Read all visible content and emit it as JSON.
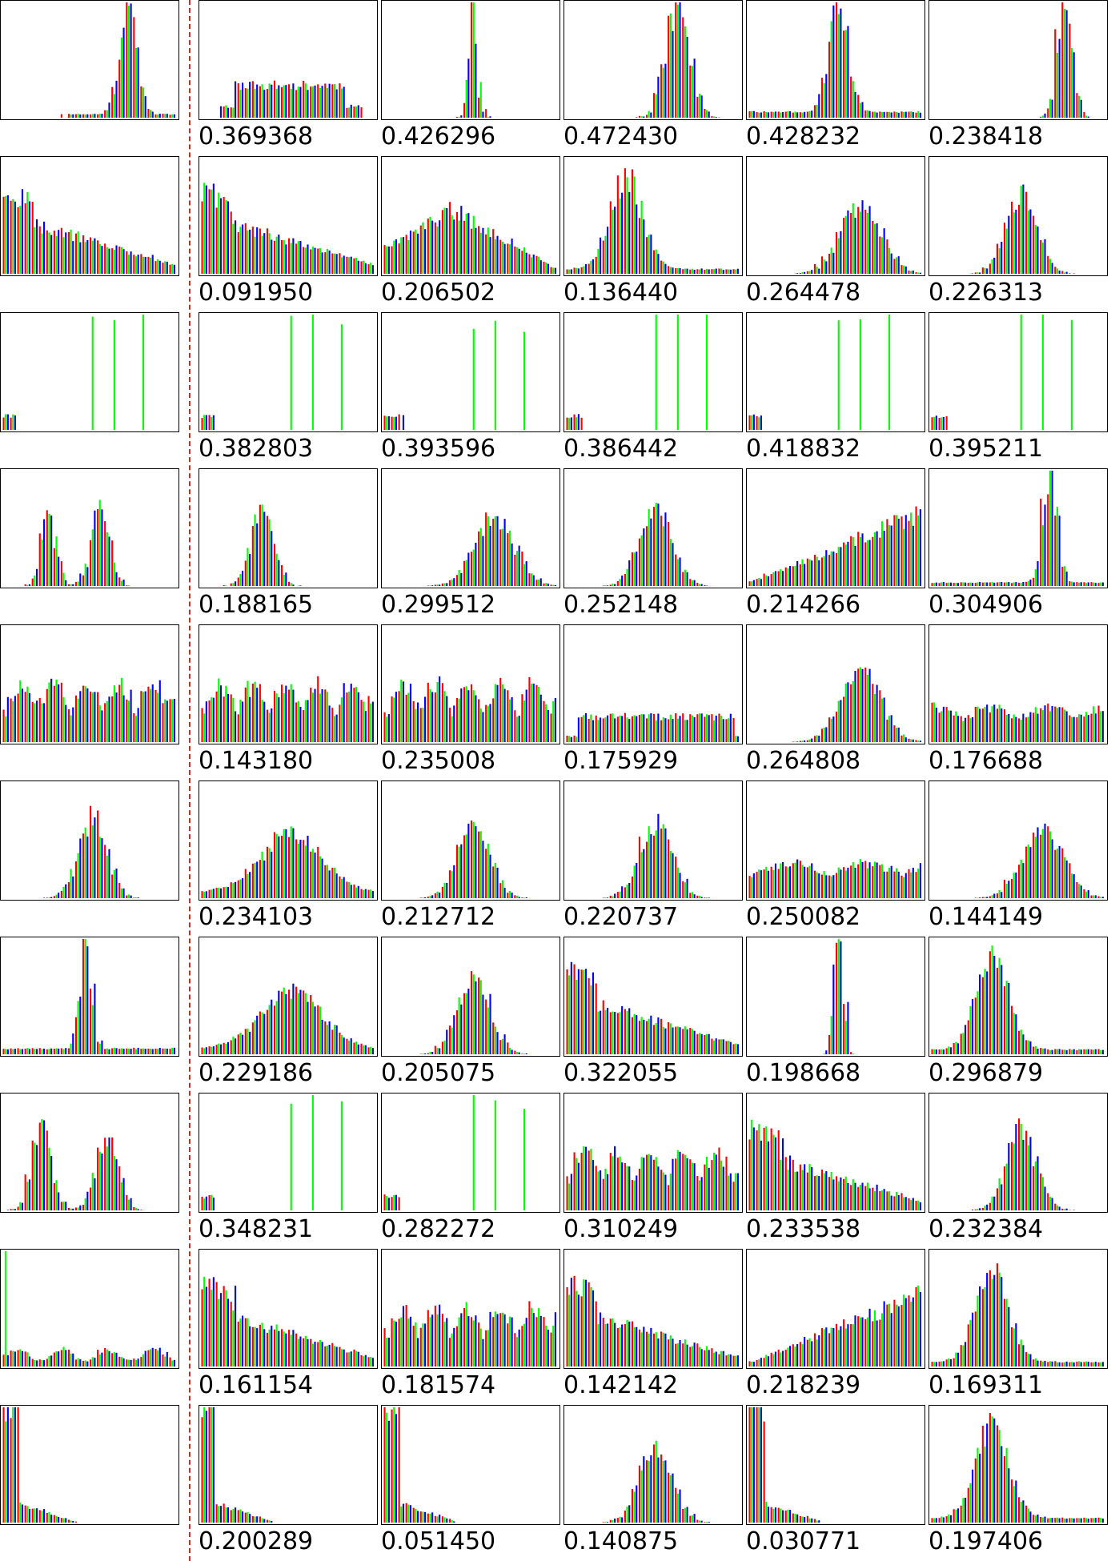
{
  "colors": {
    "red": "#ff0000",
    "green": "#00ff00",
    "blue": "#0000ff",
    "frame": "#000000",
    "divider": "#e0201a"
  },
  "chart_data": {
    "type": "histogram-grid",
    "description_series": [
      "red",
      "green",
      "blue"
    ],
    "rows": [
      {
        "query": "sharp-right",
        "results": [
          {
            "score": "0.369368",
            "shape": "plateau"
          },
          {
            "score": "0.426296",
            "shape": "spike-center"
          },
          {
            "score": "0.472430",
            "shape": "peak-mid-right"
          },
          {
            "score": "0.428232",
            "shape": "peak-center"
          },
          {
            "score": "0.238418",
            "shape": "peak-right"
          }
        ]
      },
      {
        "query": "decay-left",
        "results": [
          {
            "score": "0.091950",
            "shape": "decay-left"
          },
          {
            "score": "0.206502",
            "shape": "broad-decay"
          },
          {
            "score": "0.136440",
            "shape": "left-peak"
          },
          {
            "score": "0.264478",
            "shape": "bell-right"
          },
          {
            "score": "0.226313",
            "shape": "mid-peak"
          }
        ]
      },
      {
        "query": "split-spikes",
        "results": [
          {
            "score": "0.382803",
            "shape": "split-spikes"
          },
          {
            "score": "0.393596",
            "shape": "split-spikes"
          },
          {
            "score": "0.386442",
            "shape": "split-spikes"
          },
          {
            "score": "0.418832",
            "shape": "split-spikes"
          },
          {
            "score": "0.395211",
            "shape": "split-spikes"
          }
        ]
      },
      {
        "query": "bimodal",
        "results": [
          {
            "score": "0.188165",
            "shape": "left-cluster"
          },
          {
            "score": "0.299512",
            "shape": "bell-right"
          },
          {
            "score": "0.252148",
            "shape": "bell-center"
          },
          {
            "score": "0.214266",
            "shape": "ramp-right"
          },
          {
            "score": "0.304906",
            "shape": "spike-right"
          }
        ]
      },
      {
        "query": "multi",
        "results": [
          {
            "score": "0.143180",
            "shape": "multi"
          },
          {
            "score": "0.235008",
            "shape": "multi"
          },
          {
            "score": "0.175929",
            "shape": "flat"
          },
          {
            "score": "0.264808",
            "shape": "bell-right"
          },
          {
            "score": "0.176688",
            "shape": "bimodal-flat"
          }
        ]
      },
      {
        "query": "bell",
        "results": [
          {
            "score": "0.234103",
            "shape": "broad"
          },
          {
            "score": "0.212712",
            "shape": "bell-center"
          },
          {
            "score": "0.220737",
            "shape": "bell-center"
          },
          {
            "score": "0.250082",
            "shape": "flat-wave"
          },
          {
            "score": "0.144149",
            "shape": "bell-right"
          }
        ]
      },
      {
        "query": "narrow-peak",
        "results": [
          {
            "score": "0.229186",
            "shape": "broad"
          },
          {
            "score": "0.205075",
            "shape": "bell-center"
          },
          {
            "score": "0.322055",
            "shape": "decay-left"
          },
          {
            "score": "0.198668",
            "shape": "spike-center"
          },
          {
            "score": "0.296879",
            "shape": "left-peak"
          }
        ]
      },
      {
        "query": "double",
        "results": [
          {
            "score": "0.348231",
            "shape": "split-spikes"
          },
          {
            "score": "0.282272",
            "shape": "split-spikes"
          },
          {
            "score": "0.310249",
            "shape": "multi"
          },
          {
            "score": "0.233538",
            "shape": "decay-left"
          },
          {
            "score": "0.232384",
            "shape": "mid-peak"
          }
        ]
      },
      {
        "query": "left-edge",
        "results": [
          {
            "score": "0.161154",
            "shape": "decay-left"
          },
          {
            "score": "0.181574",
            "shape": "multi"
          },
          {
            "score": "0.142142",
            "shape": "decay-left"
          },
          {
            "score": "0.218239",
            "shape": "ramp-right"
          },
          {
            "score": "0.169311",
            "shape": "left-peak"
          }
        ]
      },
      {
        "query": "spike-left",
        "results": [
          {
            "score": "0.200289",
            "shape": "spike-left"
          },
          {
            "score": "0.051450",
            "shape": "spike-left"
          },
          {
            "score": "0.140875",
            "shape": "bell-center"
          },
          {
            "score": "0.030771",
            "shape": "spike-left"
          },
          {
            "score": "0.197406",
            "shape": "left-peak"
          }
        ]
      }
    ]
  }
}
